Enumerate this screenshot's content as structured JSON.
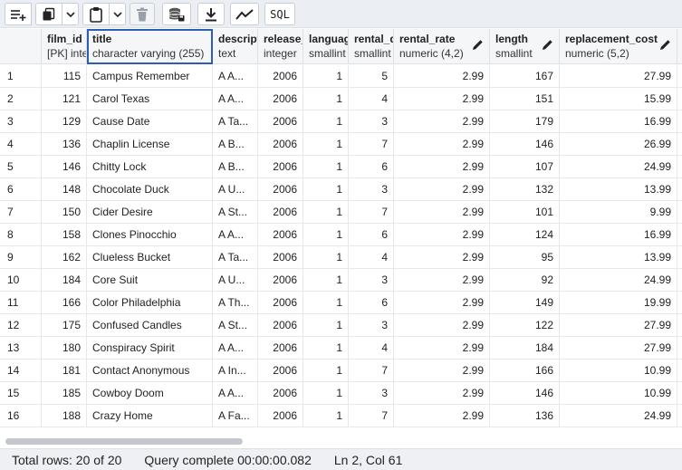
{
  "toolbar": {
    "buttons": [
      {
        "name": "add-row-button",
        "icon": "add-row-icon"
      },
      {
        "name": "copy-button",
        "icon": "copy-icon"
      },
      {
        "name": "paste-button",
        "icon": "paste-icon"
      },
      {
        "name": "delete-button",
        "icon": "trash-icon"
      },
      {
        "name": "save-data-button",
        "icon": "database-save-icon"
      },
      {
        "name": "download-button",
        "icon": "download-icon"
      },
      {
        "name": "graph-button",
        "icon": "line-chart-icon"
      },
      {
        "name": "sql-button",
        "label": "SQL"
      }
    ],
    "sql_label": "SQL"
  },
  "columns": [
    {
      "name": "film_id",
      "type": "[PK] integer"
    },
    {
      "name": "title",
      "type": "character varying (255)"
    },
    {
      "name": "description",
      "type": "text"
    },
    {
      "name": "release_year",
      "type": "integer"
    },
    {
      "name": "language_id",
      "type": "smallint"
    },
    {
      "name": "rental_duration",
      "type": "smallint"
    },
    {
      "name": "rental_rate",
      "type": "numeric (4,2)"
    },
    {
      "name": "length",
      "type": "smallint"
    },
    {
      "name": "replacement_cost",
      "type": "numeric (5,2)"
    }
  ],
  "rows": [
    {
      "n": "1",
      "film_id": "115",
      "title": "Campus Remember",
      "description": "A A...",
      "release_year": "2006",
      "language_id": "1",
      "rental_duration": "5",
      "rental_rate": "2.99",
      "length": "167",
      "replacement_cost": "27.99"
    },
    {
      "n": "2",
      "film_id": "121",
      "title": "Carol Texas",
      "description": "A A...",
      "release_year": "2006",
      "language_id": "1",
      "rental_duration": "4",
      "rental_rate": "2.99",
      "length": "151",
      "replacement_cost": "15.99"
    },
    {
      "n": "3",
      "film_id": "129",
      "title": "Cause Date",
      "description": "A Ta...",
      "release_year": "2006",
      "language_id": "1",
      "rental_duration": "3",
      "rental_rate": "2.99",
      "length": "179",
      "replacement_cost": "16.99"
    },
    {
      "n": "4",
      "film_id": "136",
      "title": "Chaplin License",
      "description": "A B...",
      "release_year": "2006",
      "language_id": "1",
      "rental_duration": "7",
      "rental_rate": "2.99",
      "length": "146",
      "replacement_cost": "26.99"
    },
    {
      "n": "5",
      "film_id": "146",
      "title": "Chitty Lock",
      "description": "A B...",
      "release_year": "2006",
      "language_id": "1",
      "rental_duration": "6",
      "rental_rate": "2.99",
      "length": "107",
      "replacement_cost": "24.99"
    },
    {
      "n": "6",
      "film_id": "148",
      "title": "Chocolate Duck",
      "description": "A U...",
      "release_year": "2006",
      "language_id": "1",
      "rental_duration": "3",
      "rental_rate": "2.99",
      "length": "132",
      "replacement_cost": "13.99"
    },
    {
      "n": "7",
      "film_id": "150",
      "title": "Cider Desire",
      "description": "A St...",
      "release_year": "2006",
      "language_id": "1",
      "rental_duration": "7",
      "rental_rate": "2.99",
      "length": "101",
      "replacement_cost": "9.99"
    },
    {
      "n": "8",
      "film_id": "158",
      "title": "Clones Pinocchio",
      "description": "A A...",
      "release_year": "2006",
      "language_id": "1",
      "rental_duration": "6",
      "rental_rate": "2.99",
      "length": "124",
      "replacement_cost": "16.99"
    },
    {
      "n": "9",
      "film_id": "162",
      "title": "Clueless Bucket",
      "description": "A Ta...",
      "release_year": "2006",
      "language_id": "1",
      "rental_duration": "4",
      "rental_rate": "2.99",
      "length": "95",
      "replacement_cost": "13.99"
    },
    {
      "n": "10",
      "film_id": "184",
      "title": "Core Suit",
      "description": "A U...",
      "release_year": "2006",
      "language_id": "1",
      "rental_duration": "3",
      "rental_rate": "2.99",
      "length": "92",
      "replacement_cost": "24.99"
    },
    {
      "n": "11",
      "film_id": "166",
      "title": "Color Philadelphia",
      "description": "A Th...",
      "release_year": "2006",
      "language_id": "1",
      "rental_duration": "6",
      "rental_rate": "2.99",
      "length": "149",
      "replacement_cost": "19.99"
    },
    {
      "n": "12",
      "film_id": "175",
      "title": "Confused Candles",
      "description": "A St...",
      "release_year": "2006",
      "language_id": "1",
      "rental_duration": "3",
      "rental_rate": "2.99",
      "length": "122",
      "replacement_cost": "27.99"
    },
    {
      "n": "13",
      "film_id": "180",
      "title": "Conspiracy Spirit",
      "description": "A A...",
      "release_year": "2006",
      "language_id": "1",
      "rental_duration": "4",
      "rental_rate": "2.99",
      "length": "184",
      "replacement_cost": "27.99"
    },
    {
      "n": "14",
      "film_id": "181",
      "title": "Contact Anonymous",
      "description": "A In...",
      "release_year": "2006",
      "language_id": "1",
      "rental_duration": "7",
      "rental_rate": "2.99",
      "length": "166",
      "replacement_cost": "10.99"
    },
    {
      "n": "15",
      "film_id": "185",
      "title": "Cowboy Doom",
      "description": "A A...",
      "release_year": "2006",
      "language_id": "1",
      "rental_duration": "3",
      "rental_rate": "2.99",
      "length": "146",
      "replacement_cost": "10.99"
    },
    {
      "n": "16",
      "film_id": "188",
      "title": "Crazy Home",
      "description": "A Fa...",
      "release_year": "2006",
      "language_id": "1",
      "rental_duration": "7",
      "rental_rate": "2.99",
      "length": "136",
      "replacement_cost": "24.99"
    }
  ],
  "status": {
    "total_rows": "Total rows: 20 of 20",
    "query_status": "Query complete 00:00:00.082",
    "cursor": "Ln 2, Col 61"
  },
  "colors": {
    "accent": "#2b5fb3",
    "toolbar_bg": "#ebeef3",
    "header_bg": "#f5f6f8"
  }
}
